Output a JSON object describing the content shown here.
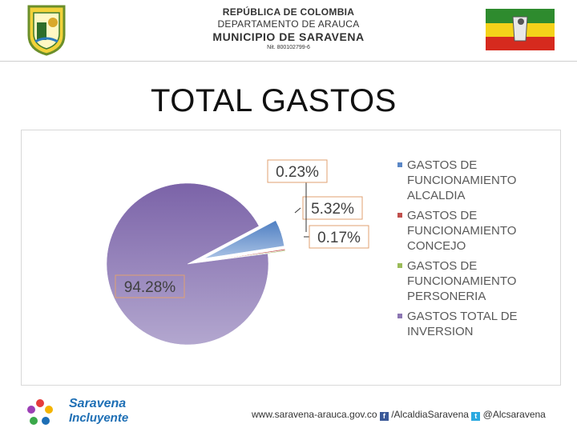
{
  "header": {
    "line1": "REPÚBLICA DE COLOMBIA",
    "line2": "DEPARTAMENTO DE ARAUCA",
    "line3": "MUNICIPIO DE SARAVENA",
    "line4": "Nit. 800102799-6"
  },
  "colors": {
    "slice_alcaldia": "#5b87c6",
    "slice_concejo": "#c0504d",
    "slice_personeria": "#9bbb59",
    "slice_inversion": "#8c77b3"
  },
  "chart_data": {
    "type": "pie",
    "title": "TOTAL GASTOS",
    "legend_position": "right",
    "categories": [
      "GASTOS DE FUNCIONAMIENTO ALCALDIA",
      "GASTOS DE FUNCIONAMIENTO CONCEJO",
      "GASTOS DE FUNCIONAMIENTO PERSONERIA",
      "GASTOS TOTAL DE INVERSION"
    ],
    "values": [
      5.32,
      0.23,
      0.17,
      94.28
    ],
    "data_labels": [
      "5.32%",
      "0.23%",
      "0.17%",
      "94.28%"
    ]
  },
  "legend": {
    "items": [
      {
        "line1": "GASTOS DE",
        "line2": "FUNCIONAMIENTO",
        "line3": "ALCALDIA"
      },
      {
        "line1": "GASTOS DE",
        "line2": "FUNCIONAMIENTO",
        "line3": "CONCEJO"
      },
      {
        "line1": "GASTOS DE",
        "line2": "FUNCIONAMIENTO",
        "line3": "PERSONERIA"
      },
      {
        "line1": "GASTOS TOTAL DE",
        "line2": "INVERSION",
        "line3": ""
      }
    ]
  },
  "footer": {
    "logo_line1": "Saravena",
    "logo_line2": "Incluyente",
    "website": "www.saravena-arauca.gov.co",
    "facebook": "/AlcaldiaSaravena",
    "twitter": "@Alcsaravena"
  },
  "icons": [
    "crest-icon",
    "flag-icon",
    "logo-flower-icon",
    "facebook-icon",
    "twitter-icon"
  ]
}
